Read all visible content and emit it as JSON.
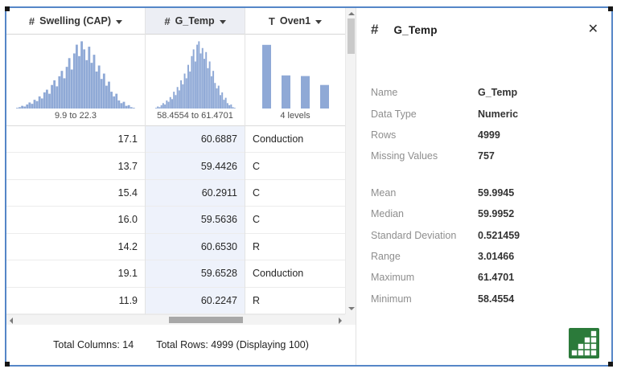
{
  "table": {
    "columns": [
      {
        "type_icon": "#",
        "type": "numeric",
        "label": "Swelling (CAP)",
        "summary": "9.9 to 22.3",
        "align": "right",
        "selected": false,
        "viz": "histogram",
        "bins": [
          1,
          2,
          4,
          3,
          6,
          9,
          7,
          13,
          11,
          18,
          15,
          24,
          28,
          22,
          35,
          42,
          33,
          48,
          56,
          45,
          62,
          75,
          58,
          82,
          95,
          78,
          100,
          88,
          72,
          92,
          68,
          80,
          55,
          64,
          44,
          52,
          34,
          40,
          25,
          18,
          22,
          12,
          8,
          10,
          4,
          5,
          2,
          1
        ]
      },
      {
        "type_icon": "#",
        "type": "numeric",
        "label": "G_Temp",
        "summary": "58.4554 to 61.4701",
        "align": "right",
        "selected": true,
        "viz": "histogram",
        "bins": [
          1,
          3,
          2,
          5,
          8,
          6,
          12,
          10,
          17,
          14,
          25,
          20,
          32,
          27,
          42,
          36,
          52,
          45,
          65,
          55,
          78,
          88,
          70,
          95,
          100,
          82,
          90,
          74,
          84,
          60,
          70,
          48,
          56,
          38,
          30,
          34,
          20,
          24,
          13,
          16,
          8,
          5,
          6,
          2,
          1
        ]
      },
      {
        "type_icon": "T",
        "type": "text",
        "label": "Oven1",
        "summary": "4 levels",
        "align": "left",
        "selected": false,
        "viz": "bars",
        "bars": [
          100,
          52,
          51,
          37
        ]
      }
    ],
    "rows": [
      [
        "17.1",
        "60.6887",
        "Conduction"
      ],
      [
        "13.7",
        "59.4426",
        "C"
      ],
      [
        "15.4",
        "60.2911",
        "C"
      ],
      [
        "16.0",
        "59.5636",
        "C"
      ],
      [
        "14.2",
        "60.6530",
        "R"
      ],
      [
        "19.1",
        "59.6528",
        "Conduction"
      ],
      [
        "11.9",
        "60.2247",
        "R"
      ]
    ],
    "footer": {
      "total_columns": "Total Columns: 14",
      "total_rows": "Total Rows: 4999 (Displaying 100)"
    }
  },
  "panel": {
    "type_icon": "#",
    "title": "G_Temp",
    "close_label": "✕",
    "group_break_index": 4,
    "fields": [
      {
        "label": "Name",
        "value": "G_Temp"
      },
      {
        "label": "Data Type",
        "value": "Numeric"
      },
      {
        "label": "Rows",
        "value": "4999"
      },
      {
        "label": "Missing Values",
        "value": "757"
      },
      {
        "label": "Mean",
        "value": "59.9945"
      },
      {
        "label": "Median",
        "value": "59.9952"
      },
      {
        "label": "Standard Deviation",
        "value": "0.521459"
      },
      {
        "label": "Range",
        "value": "3.01466"
      },
      {
        "label": "Maximum",
        "value": "61.4701"
      },
      {
        "label": "Minimum",
        "value": "58.4554"
      }
    ]
  },
  "colors": {
    "accent_border": "#5586c7",
    "histogram_fill": "#8fa9d6",
    "selected_cell_bg": "#eef2fb",
    "selected_header_bg": "#eceef4",
    "viz_button_green": "#2b7a3a"
  }
}
